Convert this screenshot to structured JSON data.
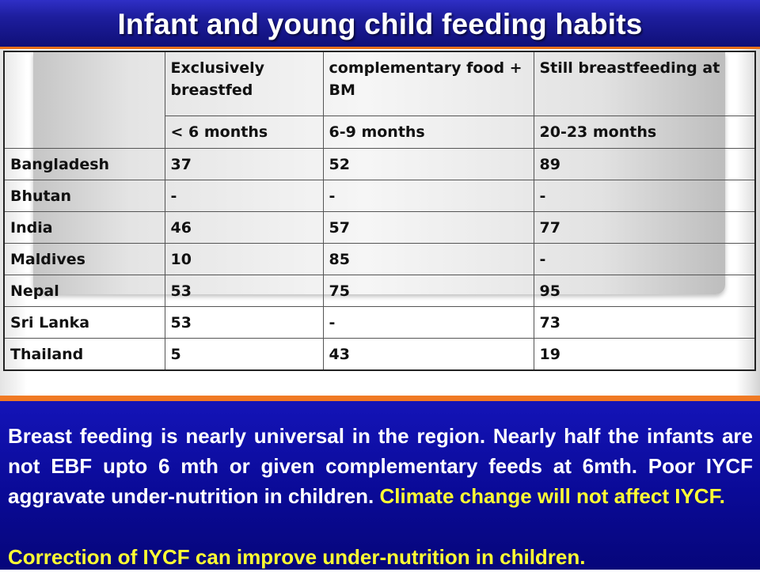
{
  "slide": {
    "title": "Infant and young child feeding habits",
    "colors": {
      "title_band": "#1e1e9e",
      "text_band": "#0a0a96",
      "accent_line": "#f07a24",
      "highlight_text": "#ffff33",
      "body_text": "#ffffff"
    }
  },
  "table": {
    "headers": [
      "",
      "Exclusively breastfed",
      "complementary food + BM",
      "Still breastfeeding at"
    ],
    "subheaders": [
      "",
      "< 6 months",
      "6-9 months",
      "20-23 months"
    ],
    "rows": [
      {
        "country": "Bangladesh",
        "ebf": "37",
        "complementary": "52",
        "still_bf": "89"
      },
      {
        "country": "Bhutan",
        "ebf": "-",
        "complementary": "-",
        "still_bf": "-"
      },
      {
        "country": "India",
        "ebf": "46",
        "complementary": "57",
        "still_bf": "77"
      },
      {
        "country": "Maldives",
        "ebf": "10",
        "complementary": "85",
        "still_bf": "-"
      },
      {
        "country": "Nepal",
        "ebf": "53",
        "complementary": "75",
        "still_bf": "95"
      },
      {
        "country": "Sri Lanka",
        "ebf": "53",
        "complementary": "-",
        "still_bf": "73"
      },
      {
        "country": "Thailand",
        "ebf": "5",
        "complementary": "43",
        "still_bf": "19"
      }
    ]
  },
  "summary": {
    "paragraph_white": "Breast feeding is nearly universal in the region. Nearly half the infants are not EBF upto 6 mth or given complementary feeds at 6mth. Poor IYCF aggravate under-nutrition in children.",
    "paragraph_yellow": "Climate change will not affect IYCF.",
    "conclusion": "Correction of IYCF can improve under-nutrition in children."
  }
}
